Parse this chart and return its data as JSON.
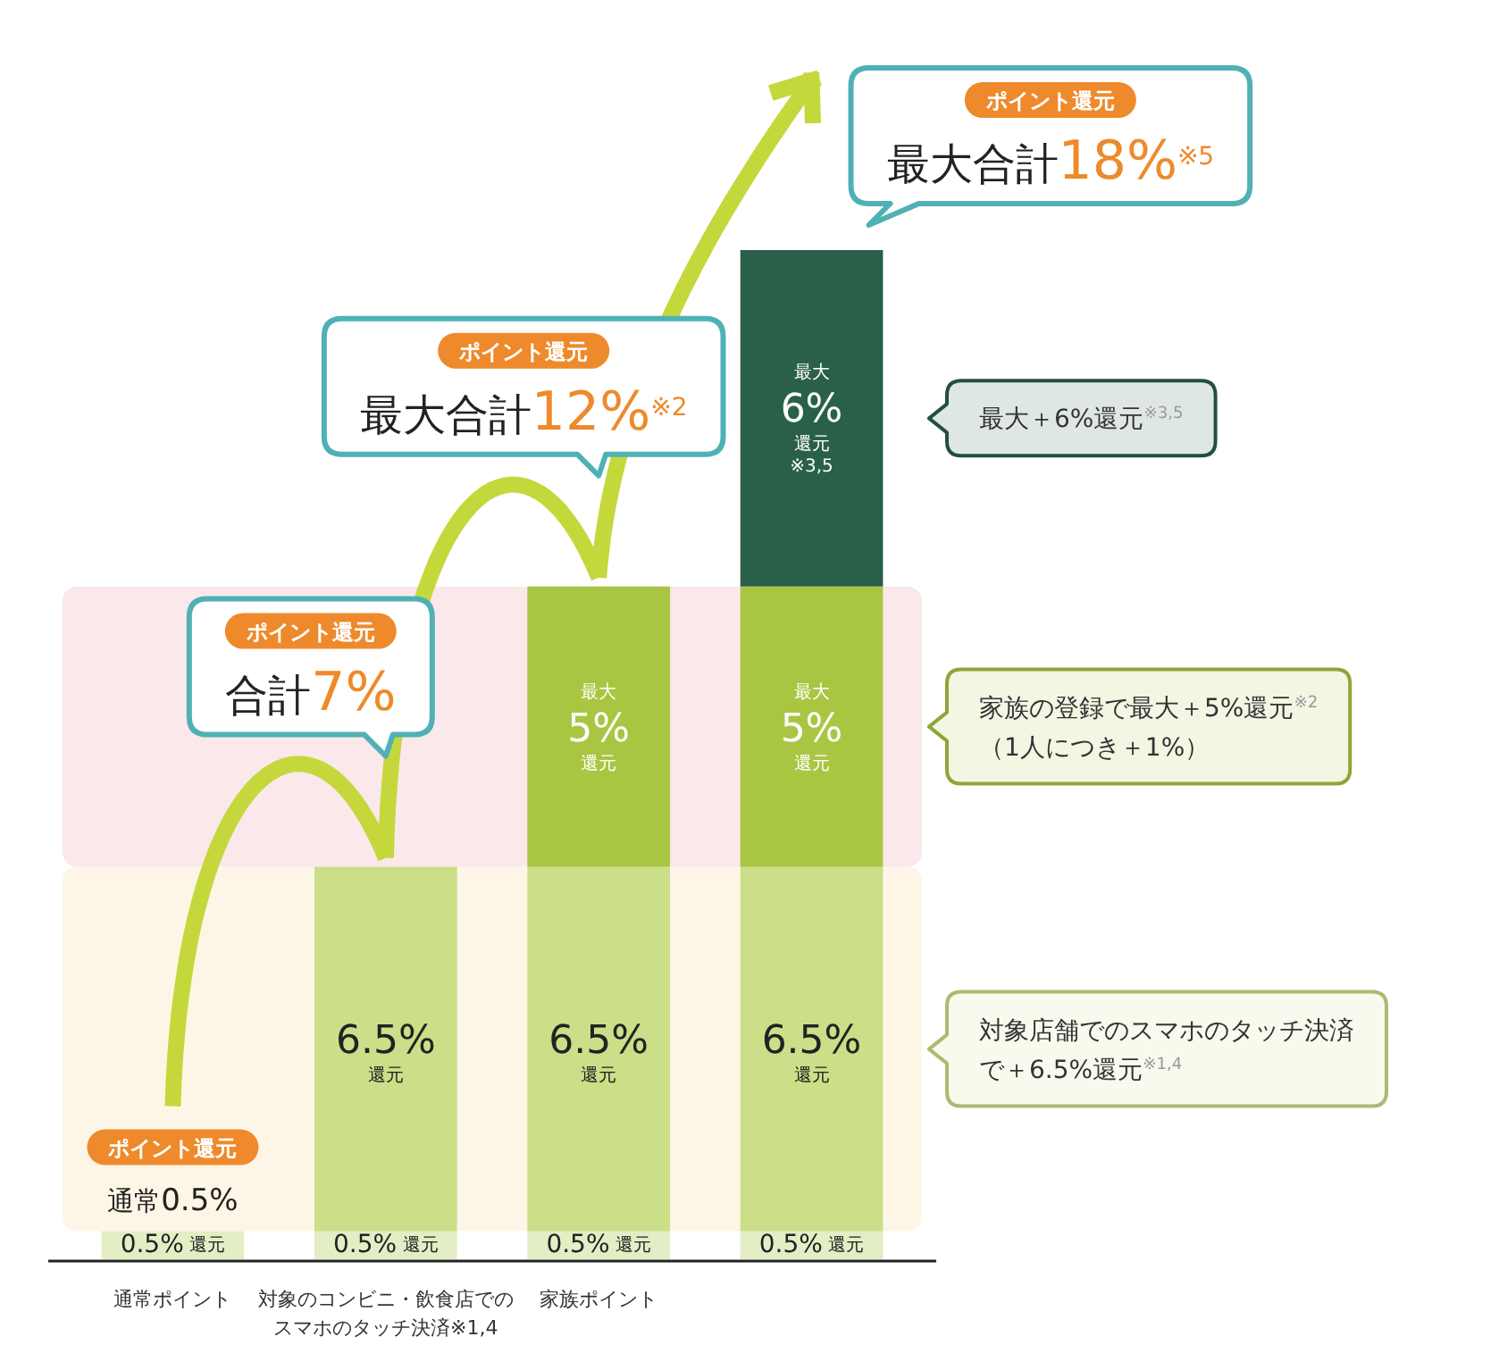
{
  "chart_data": {
    "type": "bar",
    "stacked": true,
    "categories": [
      "通常ポイント",
      "対象のコンビニ・飲食店でのスマホのタッチ決済※1,4",
      "家族ポイント",
      null
    ],
    "series": [
      {
        "color": "#e3eec4",
        "values": [
          0.5,
          0.5,
          0.5,
          0.5
        ],
        "value_labels": [
          "0.5%\n還元",
          "0.5%\n還元",
          "0.5%\n還元",
          "0.5%\n還元"
        ]
      },
      {
        "name": "対象店舗でのスマホのタッチ決済で＋6.5%還元$^{※1,4}$",
        "color": "#cadf87",
        "values": [
          null,
          6.5,
          6.5,
          6.5
        ],
        "value_labels": [
          null,
          "6.5%\n還元",
          "6.5%\n還元",
          "6.5%\n還元"
        ]
      },
      {
        "name": "家族の登録で最大＋5%還元$^{※2}$（1人につき＋1%）",
        "color": "#a9c642",
        "values": [
          null,
          null,
          5,
          5
        ],
        "value_labels": [
          null,
          null,
          "最大\n5%\n還元",
          "最大\n5%\n還元"
        ]
      },
      {
        "name": "最大＋6%還元$^{※3,5}$",
        "color": "#2a6049",
        "values": [
          null,
          null,
          null,
          6
        ],
        "value_labels": [
          null,
          null,
          null,
          "最大\n6%\n還元\n※3,5"
        ]
      }
    ],
    "totals": [
      "通常0.5%",
      "合計7%",
      "最大合計12%$^{※2}$",
      "最大合計18%$^{※5}$"
    ],
    "annotations": [
      "ポイント還元",
      "ポイント還元",
      "ポイント還元",
      "ポイント還元"
    ],
    "bands": [
      {
        "axis": "y",
        "from": 0.5,
        "to": 7,
        "color": "#fdf6e6"
      },
      {
        "axis": "y",
        "from": 7,
        "to": 12,
        "color": "#fbe8ea"
      }
    ]
  }
}
